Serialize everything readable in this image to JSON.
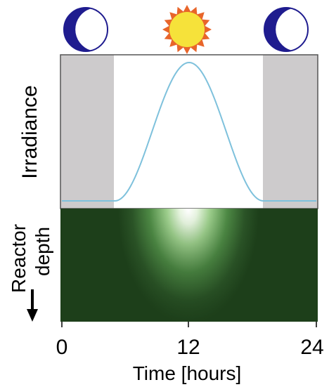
{
  "icons": {
    "left_icon": "moon-icon",
    "center_icon": "sun-icon",
    "right_icon": "moon-icon"
  },
  "colors": {
    "moon_fill": "#1f1c8f",
    "sun_rays": "#e8652a",
    "sun_core": "#f6e23a",
    "night_shade": "#cdcbcc",
    "irradiance_curve": "#7ec1dc",
    "reactor_dark": "#1d3f1a",
    "reactor_light": "#ffffff"
  },
  "irradiance_panel": {
    "ylabel": "Irradiance",
    "night_periods": [
      [
        0,
        5
      ],
      [
        19,
        24
      ]
    ],
    "daylight": {
      "start": 5,
      "peak": 12,
      "end": 19
    }
  },
  "reactor_panel": {
    "ylabel_line1": "Reactor",
    "ylabel_line2": "depth",
    "depth_arrow": "down-arrow-icon"
  },
  "x_axis": {
    "label": "Time [hours]",
    "ticks": [
      "0",
      "12",
      "24"
    ],
    "range": [
      0,
      24
    ]
  }
}
